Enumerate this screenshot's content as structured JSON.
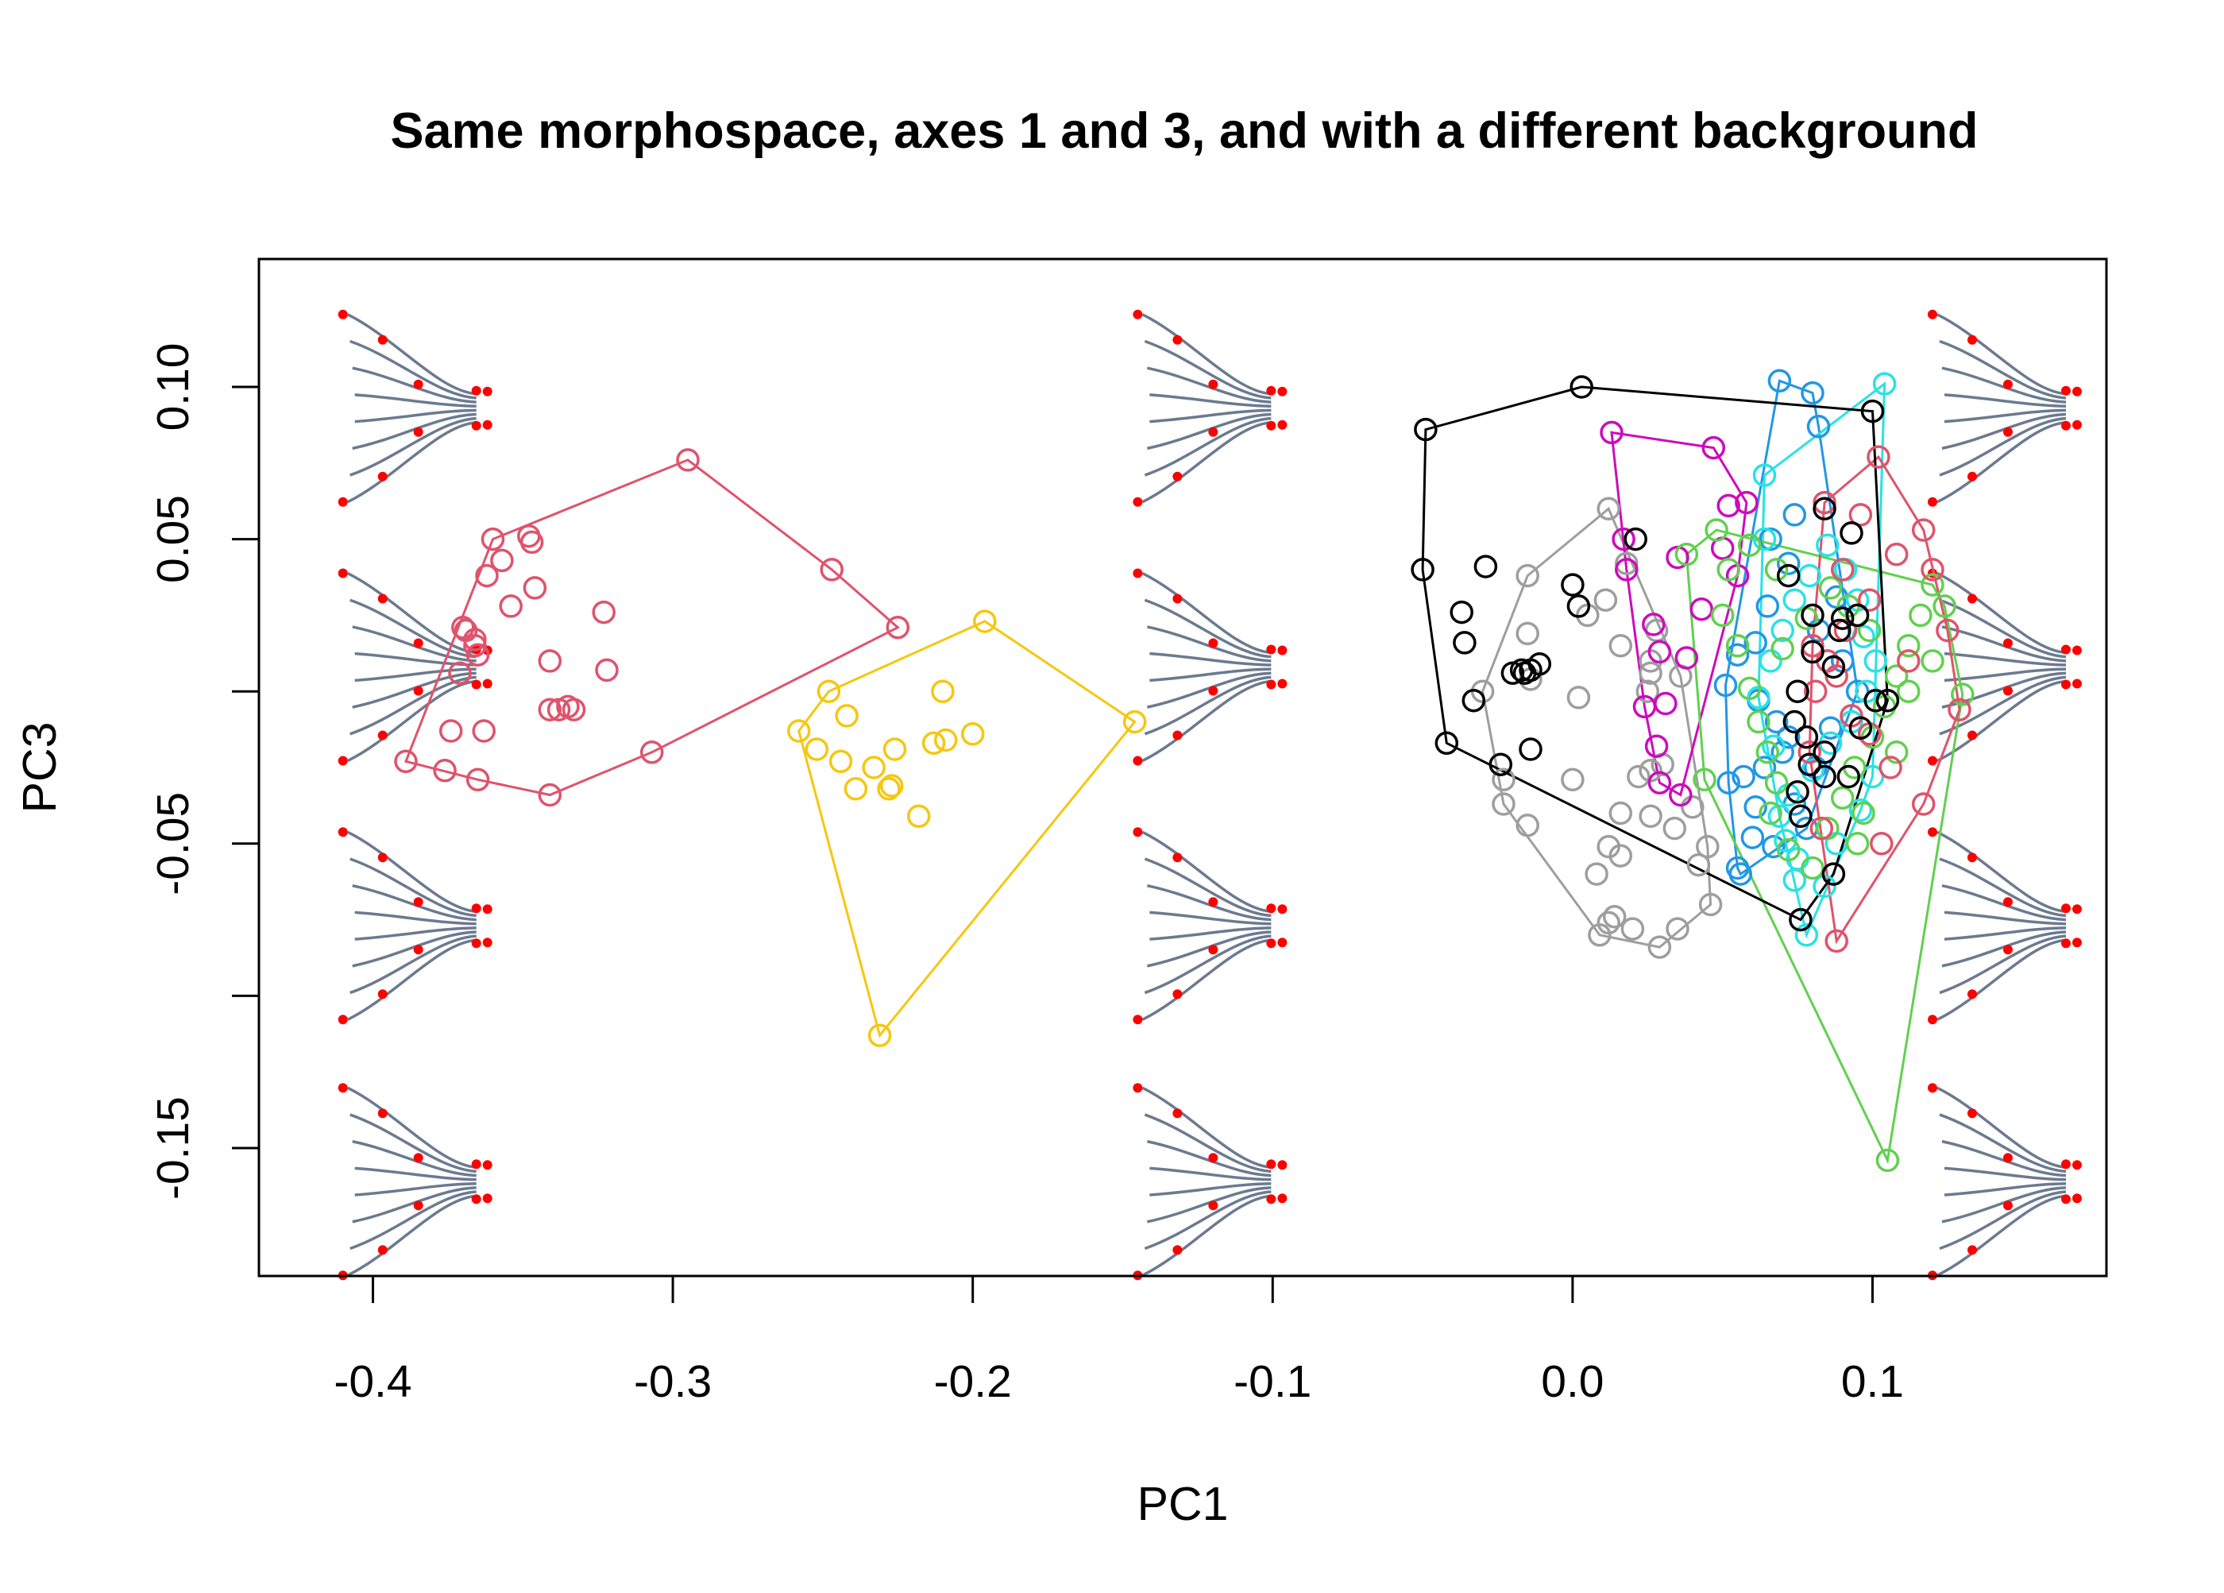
{
  "chart_data": {
    "type": "scatter",
    "title": "Same morphospace, axes 1 and 3, and with a different background",
    "xlabel": "PC1",
    "ylabel": "PC3",
    "xlim": [
      -0.438,
      0.178
    ],
    "ylim": [
      -0.192,
      0.142
    ],
    "x_ticks": [
      "-0.4",
      "-0.3",
      "-0.2",
      "-0.1",
      "0.0",
      "0.1"
    ],
    "y_ticks": [
      "0.10",
      "0.05",
      "-0.05",
      "-0.15"
    ],
    "y_tick_marks": [
      0.1,
      0.05,
      0.0,
      -0.05,
      -0.1,
      -0.15
    ],
    "point_style": "open-circle",
    "hulls": "convex hull per group",
    "background_shapes": {
      "description": "fin outline shapes (grey rays, red landmarks) on a grid behind the points",
      "columns_pc1": [
        -0.41,
        -0.145,
        0.12
      ],
      "rows_pc3": [
        0.093,
        0.008,
        -0.077,
        -0.161
      ],
      "ray_color": "#6B7A8F",
      "landmark_color": "#FF0000"
    },
    "series": [
      {
        "color": "#DF536B",
        "points": [
          [
            -0.295,
            0.076
          ],
          [
            -0.225,
            0.021
          ],
          [
            -0.247,
            0.04
          ],
          [
            -0.307,
            -0.02
          ],
          [
            -0.341,
            -0.034
          ],
          [
            -0.365,
            -0.029
          ],
          [
            -0.376,
            -0.026
          ],
          [
            -0.389,
            -0.023
          ],
          [
            -0.37,
            0.021
          ],
          [
            -0.36,
            0.05
          ],
          [
            -0.348,
            0.051
          ],
          [
            -0.347,
            0.049
          ],
          [
            -0.357,
            0.043
          ],
          [
            -0.362,
            0.038
          ],
          [
            -0.346,
            0.034
          ],
          [
            -0.354,
            0.028
          ],
          [
            -0.323,
            0.026
          ],
          [
            -0.366,
            0.015
          ],
          [
            -0.365,
            0.012
          ],
          [
            -0.341,
            0.01
          ],
          [
            -0.322,
            0.007
          ],
          [
            -0.371,
            0.006
          ],
          [
            -0.335,
            -0.005
          ],
          [
            -0.338,
            -0.006
          ],
          [
            -0.333,
            -0.006
          ],
          [
            -0.341,
            -0.006
          ],
          [
            -0.374,
            -0.013
          ],
          [
            -0.363,
            -0.013
          ],
          [
            -0.369,
            0.02
          ],
          [
            -0.366,
            0.017
          ]
        ]
      },
      {
        "color": "#F5C710",
        "points": [
          [
            -0.196,
            0.023
          ],
          [
            -0.146,
            -0.01
          ],
          [
            -0.231,
            -0.113
          ],
          [
            -0.258,
            -0.013
          ],
          [
            -0.248,
            0.0
          ],
          [
            -0.242,
            -0.008
          ],
          [
            -0.21,
            0.0
          ],
          [
            -0.2,
            -0.014
          ],
          [
            -0.209,
            -0.016
          ],
          [
            -0.213,
            -0.017
          ],
          [
            -0.226,
            -0.019
          ],
          [
            -0.244,
            -0.023
          ],
          [
            -0.233,
            -0.025
          ],
          [
            -0.227,
            -0.031
          ],
          [
            -0.228,
            -0.032
          ],
          [
            -0.239,
            -0.032
          ],
          [
            -0.218,
            -0.041
          ],
          [
            -0.252,
            -0.019
          ]
        ]
      },
      {
        "color": "#9E9E9E",
        "points": [
          [
            0.012,
            0.06
          ],
          [
            0.029,
            -0.084
          ],
          [
            -0.023,
            -0.037
          ],
          [
            -0.03,
            0.0
          ],
          [
            -0.014,
            0.004
          ],
          [
            -0.015,
            0.019
          ],
          [
            -0.023,
            -0.029
          ],
          [
            -0.015,
            0.038
          ],
          [
            0.026,
            0.01
          ],
          [
            0.025,
            0.0
          ],
          [
            0.036,
            0.005
          ],
          [
            0.03,
            -0.024
          ],
          [
            0.04,
            -0.038
          ],
          [
            0.042,
            -0.057
          ],
          [
            0.045,
            -0.051
          ],
          [
            0.034,
            -0.045
          ],
          [
            0.026,
            -0.041
          ],
          [
            0.016,
            -0.04
          ],
          [
            0.016,
            -0.054
          ],
          [
            0.012,
            -0.051
          ],
          [
            0.008,
            -0.06
          ],
          [
            0.014,
            -0.074
          ],
          [
            0.012,
            -0.076
          ],
          [
            0.02,
            -0.078
          ],
          [
            0.009,
            -0.08
          ],
          [
            0.035,
            -0.078
          ],
          [
            0.046,
            -0.07
          ],
          [
            -0.015,
            -0.044
          ],
          [
            0.0,
            -0.029
          ],
          [
            0.022,
            -0.028
          ],
          [
            0.002,
            -0.002
          ],
          [
            0.026,
            -0.026
          ],
          [
            0.028,
            0.02
          ],
          [
            0.018,
            0.042
          ],
          [
            0.011,
            0.03
          ],
          [
            0.016,
            0.015
          ],
          [
            0.026,
            0.006
          ],
          [
            0.005,
            0.025
          ]
        ]
      },
      {
        "color": "#CD0BBC",
        "points": [
          [
            0.013,
            0.085
          ],
          [
            0.047,
            0.08
          ],
          [
            0.058,
            0.062
          ],
          [
            0.035,
            0.044
          ],
          [
            0.018,
            0.04
          ],
          [
            0.017,
            0.05
          ],
          [
            0.027,
            0.022
          ],
          [
            0.029,
            0.013
          ],
          [
            0.031,
            -0.004
          ],
          [
            0.038,
            0.011
          ],
          [
            0.043,
            0.027
          ],
          [
            0.052,
            0.061
          ],
          [
            0.05,
            0.047
          ],
          [
            0.055,
            0.038
          ],
          [
            0.024,
            -0.005
          ],
          [
            0.028,
            -0.018
          ],
          [
            0.029,
            -0.03
          ],
          [
            0.036,
            -0.034
          ]
        ]
      },
      {
        "color": "#2297E6",
        "points": [
          [
            0.069,
            0.102
          ],
          [
            0.08,
            0.098
          ],
          [
            0.082,
            0.087
          ],
          [
            0.056,
            -0.06
          ],
          [
            0.055,
            -0.058
          ],
          [
            0.06,
            -0.048
          ],
          [
            0.067,
            -0.051
          ],
          [
            0.061,
            -0.038
          ],
          [
            0.057,
            -0.028
          ],
          [
            0.052,
            -0.03
          ],
          [
            0.064,
            -0.025
          ],
          [
            0.07,
            -0.02
          ],
          [
            0.072,
            -0.015
          ],
          [
            0.068,
            -0.01
          ],
          [
            0.062,
            -0.003
          ],
          [
            0.051,
            0.002
          ],
          [
            0.055,
            0.012
          ],
          [
            0.061,
            0.016
          ],
          [
            0.065,
            0.028
          ],
          [
            0.072,
            0.042
          ],
          [
            0.066,
            0.05
          ],
          [
            0.074,
            0.058
          ],
          [
            0.088,
            0.031
          ],
          [
            0.082,
            0.02
          ],
          [
            0.09,
            0.01
          ],
          [
            0.095,
            0.0
          ],
          [
            0.086,
            -0.012
          ],
          [
            0.081,
            -0.025
          ],
          [
            0.074,
            -0.037
          ],
          [
            0.078,
            -0.045
          ]
        ]
      },
      {
        "color": "#28E2E5",
        "points": [
          [
            0.104,
            0.101
          ],
          [
            0.064,
            0.071
          ],
          [
            0.064,
            0.05
          ],
          [
            0.078,
            -0.08
          ],
          [
            0.074,
            -0.062
          ],
          [
            0.071,
            -0.049
          ],
          [
            0.069,
            -0.041
          ],
          [
            0.072,
            -0.034
          ],
          [
            0.08,
            -0.026
          ],
          [
            0.086,
            -0.017
          ],
          [
            0.093,
            -0.01
          ],
          [
            0.098,
            0.0
          ],
          [
            0.101,
            0.01
          ],
          [
            0.097,
            0.018
          ],
          [
            0.095,
            0.03
          ],
          [
            0.091,
            0.04
          ],
          [
            0.085,
            0.048
          ],
          [
            0.079,
            0.038
          ],
          [
            0.074,
            0.03
          ],
          [
            0.07,
            0.02
          ],
          [
            0.066,
            0.01
          ],
          [
            0.062,
            -0.002
          ],
          [
            0.067,
            -0.018
          ],
          [
            0.075,
            -0.055
          ],
          [
            0.084,
            -0.064
          ],
          [
            0.088,
            -0.05
          ],
          [
            0.096,
            -0.039
          ],
          [
            0.1,
            -0.028
          ]
        ]
      },
      {
        "color": "#61D04F",
        "points": [
          [
            0.105,
            -0.154
          ],
          [
            0.13,
            -0.001
          ],
          [
            0.044,
            -0.029
          ],
          [
            0.038,
            0.045
          ],
          [
            0.048,
            0.053
          ],
          [
            0.059,
            0.048
          ],
          [
            0.068,
            0.04
          ],
          [
            0.052,
            0.04
          ],
          [
            0.05,
            0.025
          ],
          [
            0.055,
            0.015
          ],
          [
            0.059,
            0.001
          ],
          [
            0.062,
            -0.01
          ],
          [
            0.065,
            -0.02
          ],
          [
            0.068,
            -0.03
          ],
          [
            0.066,
            -0.04
          ],
          [
            0.072,
            -0.052
          ],
          [
            0.08,
            -0.058
          ],
          [
            0.085,
            -0.045
          ],
          [
            0.09,
            -0.035
          ],
          [
            0.094,
            -0.025
          ],
          [
            0.1,
            -0.015
          ],
          [
            0.104,
            -0.005
          ],
          [
            0.108,
            0.005
          ],
          [
            0.112,
            0.015
          ],
          [
            0.116,
            0.025
          ],
          [
            0.12,
            0.035
          ],
          [
            0.124,
            0.028
          ],
          [
            0.12,
            0.01
          ],
          [
            0.112,
            0.0
          ],
          [
            0.099,
            0.02
          ],
          [
            0.092,
            0.028
          ],
          [
            0.086,
            0.034
          ],
          [
            0.078,
            0.024
          ],
          [
            0.07,
            0.014
          ],
          [
            0.097,
            -0.04
          ],
          [
            0.095,
            -0.05
          ],
          [
            0.108,
            -0.02
          ]
        ]
      },
      {
        "color": "#DF536B",
        "points": [
          [
            0.102,
            0.077
          ],
          [
            0.117,
            0.053
          ],
          [
            0.125,
            0.02
          ],
          [
            0.129,
            -0.006
          ],
          [
            0.117,
            -0.037
          ],
          [
            0.103,
            -0.05
          ],
          [
            0.088,
            -0.082
          ],
          [
            0.083,
            -0.045
          ],
          [
            0.079,
            -0.02
          ],
          [
            0.085,
            0.01
          ],
          [
            0.09,
            0.04
          ],
          [
            0.096,
            0.058
          ],
          [
            0.084,
            0.062
          ],
          [
            0.08,
            0.015
          ],
          [
            0.088,
            0.005
          ],
          [
            0.093,
            -0.008
          ],
          [
            0.099,
            -0.014
          ],
          [
            0.106,
            -0.025
          ],
          [
            0.112,
            0.01
          ],
          [
            0.12,
            0.04
          ],
          [
            0.108,
            0.045
          ],
          [
            0.099,
            0.03
          ],
          [
            0.091,
            0.02
          ],
          [
            0.081,
            0.0
          ]
        ]
      },
      {
        "color": "#000000",
        "points": [
          [
            0.003,
            0.1
          ],
          [
            -0.049,
            0.086
          ],
          [
            -0.05,
            0.04
          ],
          [
            -0.042,
            -0.017
          ],
          [
            -0.024,
            -0.024
          ],
          [
            -0.014,
            -0.019
          ],
          [
            0.021,
            0.05
          ],
          [
            -0.036,
            0.016
          ],
          [
            -0.037,
            0.026
          ],
          [
            -0.029,
            0.041
          ],
          [
            -0.033,
            -0.003
          ],
          [
            -0.014,
            0.007
          ],
          [
            -0.02,
            0.006
          ],
          [
            -0.017,
            0.007
          ],
          [
            -0.016,
            0.006
          ],
          [
            -0.011,
            0.009
          ],
          [
            0.0,
            0.035
          ],
          [
            0.002,
            0.028
          ],
          [
            0.1,
            0.092
          ],
          [
            0.076,
            -0.075
          ],
          [
            0.093,
            0.052
          ],
          [
            0.084,
            0.06
          ],
          [
            0.072,
            0.038
          ],
          [
            0.08,
            0.025
          ],
          [
            0.09,
            0.024
          ],
          [
            0.095,
            0.025
          ],
          [
            0.089,
            0.02
          ],
          [
            0.08,
            0.013
          ],
          [
            0.087,
            0.008
          ],
          [
            0.075,
            0.0
          ],
          [
            0.074,
            -0.01
          ],
          [
            0.078,
            -0.015
          ],
          [
            0.079,
            -0.024
          ],
          [
            0.084,
            -0.028
          ],
          [
            0.092,
            -0.028
          ],
          [
            0.096,
            -0.012
          ],
          [
            0.101,
            -0.003
          ],
          [
            0.105,
            -0.003
          ],
          [
            0.084,
            -0.02
          ],
          [
            0.087,
            -0.06
          ],
          [
            0.076,
            -0.041
          ],
          [
            0.075,
            -0.033
          ]
        ]
      }
    ]
  }
}
